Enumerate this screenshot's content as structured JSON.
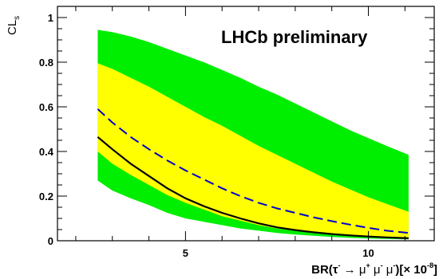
{
  "chart_data": {
    "type": "area",
    "title": "",
    "annotation": "LHCb preliminary",
    "xlabel": "BR(τ⁻ → μ⁺ μ⁻ μ⁻)[× 10⁻⁸]",
    "xlabel_parts": {
      "main": "BR(τ",
      "sup1": "-",
      "arrow": " → μ",
      "sup2": "+",
      "mid": " μ",
      "sup3": "-",
      "mu2": " μ",
      "sup4": "-",
      "close": ")[× 10",
      "sup5": "-8",
      "end": "]"
    },
    "ylabel": "CL",
    "ylabel_sub": "s",
    "xlim": [
      1.5,
      11.8
    ],
    "ylim": [
      0,
      1.05
    ],
    "x_ticks": [
      5,
      10
    ],
    "x_tick_labels": [
      "5",
      "10"
    ],
    "y_ticks": [
      0,
      0.2,
      0.4,
      0.6,
      0.8,
      1
    ],
    "y_tick_labels": [
      "0",
      "0.2",
      "0.4",
      "0.6",
      "0.8",
      "1"
    ],
    "x": [
      2.6,
      3.0,
      3.5,
      4.0,
      4.5,
      5.0,
      5.5,
      6.0,
      6.5,
      7.0,
      7.5,
      8.0,
      8.5,
      9.0,
      9.5,
      10.0,
      10.5,
      11.1
    ],
    "series": [
      {
        "name": "",
        "kind": "band",
        "color": "#00ee00",
        "upper": [
          0.945,
          0.935,
          0.915,
          0.89,
          0.86,
          0.83,
          0.8,
          0.765,
          0.73,
          0.69,
          0.655,
          0.615,
          0.575,
          0.535,
          0.495,
          0.46,
          0.425,
          0.385
        ],
        "lower": [
          0.27,
          0.225,
          0.19,
          0.16,
          0.125,
          0.1,
          0.085,
          0.07,
          0.055,
          0.045,
          0.035,
          0.028,
          0.022,
          0.017,
          0.013,
          0.01,
          0.008,
          0.006
        ]
      },
      {
        "name": "",
        "kind": "band",
        "color": "#ffff00",
        "upper": [
          0.795,
          0.77,
          0.73,
          0.69,
          0.645,
          0.6,
          0.555,
          0.515,
          0.47,
          0.425,
          0.385,
          0.345,
          0.305,
          0.265,
          0.23,
          0.195,
          0.165,
          0.13
        ],
        "lower": [
          0.4,
          0.345,
          0.295,
          0.25,
          0.205,
          0.17,
          0.14,
          0.11,
          0.09,
          0.07,
          0.055,
          0.045,
          0.036,
          0.028,
          0.022,
          0.018,
          0.015,
          0.012
        ]
      },
      {
        "name": "",
        "kind": "line",
        "color": "#0000cc",
        "dash": true,
        "values": [
          0.59,
          0.53,
          0.465,
          0.41,
          0.36,
          0.315,
          0.275,
          0.235,
          0.2,
          0.17,
          0.145,
          0.125,
          0.105,
          0.088,
          0.072,
          0.058,
          0.045,
          0.035
        ]
      },
      {
        "name": "",
        "kind": "line",
        "color": "#000000",
        "dash": false,
        "values": [
          0.465,
          0.41,
          0.345,
          0.29,
          0.235,
          0.19,
          0.155,
          0.125,
          0.1,
          0.078,
          0.06,
          0.048,
          0.038,
          0.03,
          0.024,
          0.019,
          0.015,
          0.011
        ]
      }
    ]
  }
}
